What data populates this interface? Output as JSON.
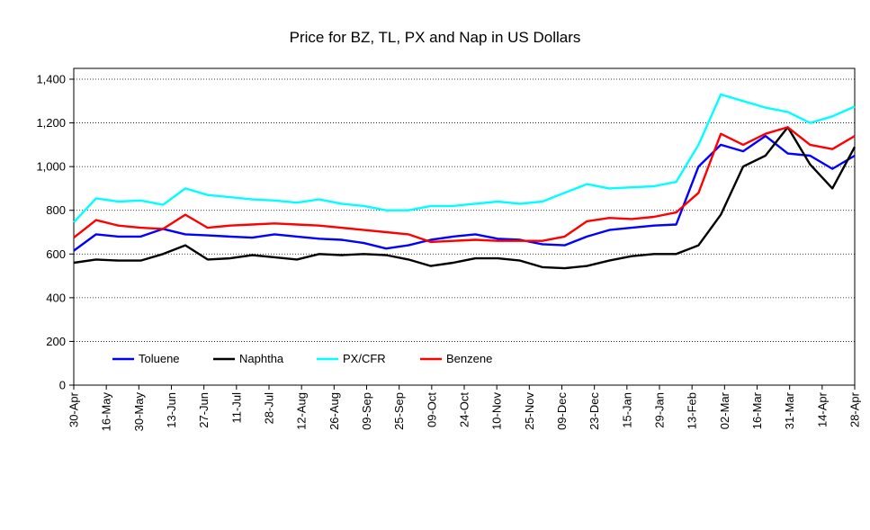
{
  "chart_data": {
    "type": "line",
    "title": "Price for BZ, TL, PX and Nap in US Dollars",
    "xlabel": "",
    "ylabel": "",
    "ylim": [
      0,
      1400
    ],
    "y_ticks": [
      "0",
      "200",
      "400",
      "600",
      "800",
      "1,000",
      "1,200",
      "1,400"
    ],
    "grid": "horizontal dotted",
    "legend_position": "lower-left inside plot",
    "x_ticks": [
      "30-Apr",
      "16-May",
      "30-May",
      "13-Jun",
      "27-Jun",
      "11-Jul",
      "28-Jul",
      "12-Aug",
      "26-Aug",
      "09-Sep",
      "25-Sep",
      "09-Oct",
      "24-Oct",
      "10-Nov",
      "25-Nov",
      "09-Dec",
      "23-Dec",
      "15-Jan",
      "29-Jan",
      "13-Feb",
      "02-Mar",
      "16-Mar",
      "31-Mar",
      "14-Apr",
      "28-Apr"
    ],
    "series": [
      {
        "name": "Toluene",
        "color": "#0000ff",
        "values": [
          615,
          690,
          680,
          680,
          715,
          690,
          685,
          680,
          675,
          690,
          680,
          670,
          665,
          650,
          625,
          640,
          665,
          680,
          690,
          670,
          665,
          645,
          640,
          680,
          710,
          720,
          730,
          735,
          1000,
          1100,
          1070,
          1140,
          1060,
          1050,
          990,
          1050
        ]
      },
      {
        "name": "Naphtha",
        "color": "#000000",
        "values": [
          560,
          575,
          570,
          570,
          600,
          640,
          575,
          580,
          595,
          585,
          575,
          600,
          595,
          600,
          595,
          575,
          545,
          560,
          580,
          580,
          570,
          540,
          535,
          545,
          570,
          590,
          600,
          600,
          640,
          780,
          1000,
          1050,
          1180,
          1010,
          900,
          1090
        ]
      },
      {
        "name": "PX/CFR",
        "color": "#00ffff",
        "values": [
          745,
          855,
          840,
          845,
          825,
          900,
          870,
          860,
          850,
          845,
          835,
          850,
          830,
          820,
          800,
          800,
          820,
          820,
          830,
          840,
          830,
          840,
          880,
          920,
          900,
          905,
          910,
          930,
          1100,
          1330,
          1300,
          1270,
          1250,
          1200,
          1230,
          1275
        ]
      },
      {
        "name": "Benzene",
        "color": "#ff0000",
        "values": [
          675,
          755,
          730,
          720,
          715,
          780,
          720,
          730,
          735,
          740,
          735,
          730,
          720,
          710,
          700,
          690,
          655,
          660,
          665,
          660,
          660,
          660,
          680,
          750,
          765,
          760,
          770,
          790,
          880,
          1150,
          1100,
          1150,
          1180,
          1100,
          1080,
          1140
        ]
      }
    ]
  }
}
